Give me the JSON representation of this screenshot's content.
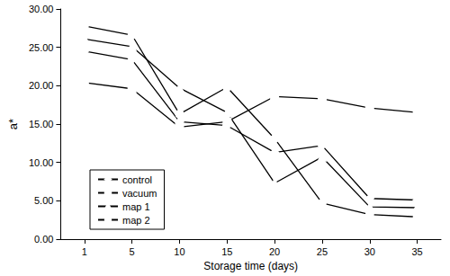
{
  "chart_data": {
    "type": "line",
    "x_label": "Storage time (days)",
    "y_label": "a*",
    "categories": [
      "1",
      "5",
      "10",
      "15",
      "20",
      "25",
      "30",
      "35"
    ],
    "series": [
      {
        "name": "control",
        "color": "#000000",
        "marker": "diamond",
        "values": [
          24.5,
          23.4,
          15.3,
          14.8,
          11.3,
          12.2,
          5.3,
          5.1
        ]
      },
      {
        "name": "vacuum",
        "color": "#000000",
        "marker": "square",
        "values": [
          20.4,
          19.6,
          14.6,
          15.3,
          18.6,
          18.3,
          17.1,
          16.5
        ]
      },
      {
        "name": "map 1",
        "color": "#000000",
        "marker": "triangle",
        "values": [
          26.1,
          25.1,
          19.7,
          16.5,
          7.3,
          10.7,
          4.2,
          4.1
        ]
      },
      {
        "name": "map 2",
        "color": "#000000",
        "marker": "circle",
        "values": [
          27.8,
          26.6,
          16.3,
          19.8,
          13.1,
          4.7,
          3.2,
          2.9
        ]
      }
    ],
    "ylim": [
      0,
      30
    ],
    "yticks": [
      {
        "value": 0,
        "label": "0.00"
      },
      {
        "value": 5,
        "label": "5.00"
      },
      {
        "value": 10,
        "label": "10.00"
      },
      {
        "value": 15,
        "label": "15.00"
      },
      {
        "value": 20,
        "label": "20.00"
      },
      {
        "value": 25,
        "label": "25.00"
      },
      {
        "value": 30,
        "label": "30.00"
      }
    ],
    "grid": false,
    "legend": "lower left"
  }
}
